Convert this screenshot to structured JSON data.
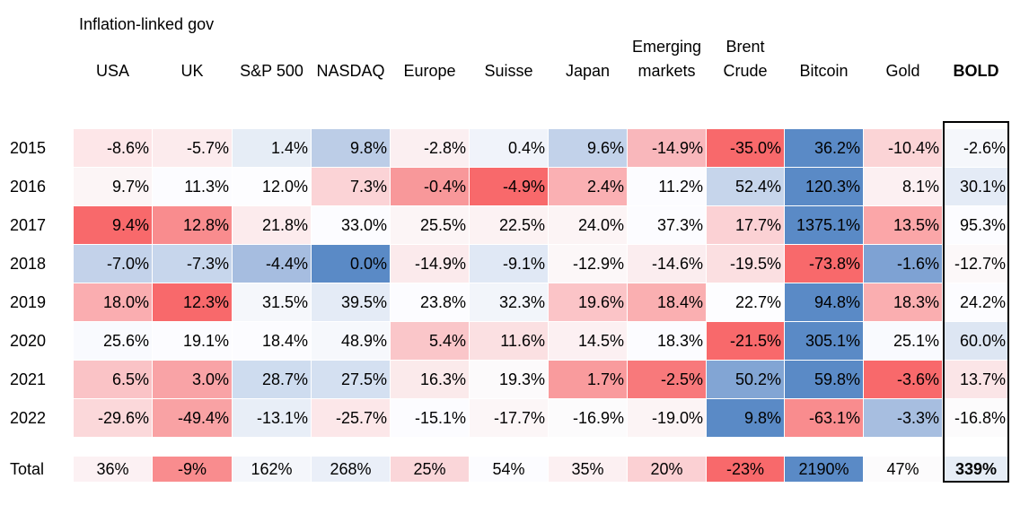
{
  "chart_data": {
    "type": "table",
    "group_header": "Inflation-linked gov",
    "columns": [
      {
        "label": "USA"
      },
      {
        "label": "UK"
      },
      {
        "label": "S&P 500"
      },
      {
        "label": "NASDAQ"
      },
      {
        "label": "Europe"
      },
      {
        "label": "Suisse"
      },
      {
        "label": "Japan"
      },
      {
        "label": "Emerging\nmarkets"
      },
      {
        "label": "Brent\nCrude"
      },
      {
        "label": "Bitcoin"
      },
      {
        "label": "Gold"
      },
      {
        "label": "BOLD",
        "bold": true
      }
    ],
    "rows": [
      {
        "year": "2015",
        "values": [
          "-8.6%",
          "-5.7%",
          "1.4%",
          "9.8%",
          "-2.8%",
          "0.4%",
          "9.6%",
          "-14.9%",
          "-35.0%",
          "36.2%",
          "-10.4%",
          "-2.6%"
        ],
        "colors": [
          "#fde6e8",
          "#fcebed",
          "#e6edf6",
          "#bccde7",
          "#fbeff1",
          "#f0f3fa",
          "#c2d2ea",
          "#f9b7bb",
          "#f8696b",
          "#5a8ac6",
          "#fbd4d6",
          "#f5f7fb"
        ]
      },
      {
        "year": "2016",
        "values": [
          "9.7%",
          "11.3%",
          "12.0%",
          "7.3%",
          "-0.4%",
          "-4.9%",
          "2.4%",
          "11.2%",
          "52.4%",
          "120.3%",
          "8.1%",
          "30.1%"
        ],
        "colors": [
          "#fcf5f6",
          "#fcfcff",
          "#fdfdff",
          "#fbd3d6",
          "#f8989a",
          "#f8696b",
          "#fab0b3",
          "#fcfcff",
          "#c6d5eb",
          "#5a8ac6",
          "#fcf0f2",
          "#e4ebf6"
        ]
      },
      {
        "year": "2017",
        "values": [
          "9.4%",
          "12.8%",
          "21.8%",
          "33.0%",
          "25.5%",
          "22.5%",
          "24.0%",
          "37.3%",
          "17.7%",
          "1375.1%",
          "13.5%",
          "95.3%"
        ],
        "colors": [
          "#f8696b",
          "#f98c8e",
          "#fcebed",
          "#fcfcff",
          "#fcf5f6",
          "#fcf2f3",
          "#fcf4f5",
          "#fcfcff",
          "#fbd1d4",
          "#5a8ac6",
          "#fba6a8",
          "#fcfcff"
        ]
      },
      {
        "year": "2018",
        "values": [
          "-7.0%",
          "-7.3%",
          "-4.4%",
          "0.0%",
          "-14.9%",
          "-9.1%",
          "-12.9%",
          "-14.6%",
          "-19.5%",
          "-73.8%",
          "-1.6%",
          "-12.7%"
        ],
        "colors": [
          "#c3d2ea",
          "#c7d6ec",
          "#a6bde0",
          "#5a8ac6",
          "#fbeaec",
          "#e0e8f5",
          "#fcf7f8",
          "#fbedef",
          "#fbdfe1",
          "#f8696b",
          "#7ea2d3",
          "#fcf8f9"
        ]
      },
      {
        "year": "2019",
        "values": [
          "18.0%",
          "12.3%",
          "31.5%",
          "39.5%",
          "23.8%",
          "32.3%",
          "19.6%",
          "18.4%",
          "22.7%",
          "94.8%",
          "18.3%",
          "24.2%"
        ],
        "colors": [
          "#faadb0",
          "#f8696b",
          "#f5f7fb",
          "#e4ebf6",
          "#fcfcff",
          "#f2f5fa",
          "#fbc4c7",
          "#faafb1",
          "#fdfdff",
          "#5a8ac6",
          "#faaeb0",
          "#fcfcff"
        ]
      },
      {
        "year": "2020",
        "values": [
          "25.6%",
          "19.1%",
          "18.4%",
          "48.9%",
          "5.4%",
          "11.6%",
          "14.5%",
          "18.3%",
          "-21.5%",
          "305.1%",
          "25.1%",
          "60.0%"
        ],
        "colors": [
          "#f9fafe",
          "#fcfcff",
          "#fcfcff",
          "#f6f8fc",
          "#fac6c9",
          "#fbe0e2",
          "#fcf0f2",
          "#fcfcff",
          "#f8696b",
          "#5a8ac6",
          "#f9fafe",
          "#dde6f3"
        ]
      },
      {
        "year": "2021",
        "values": [
          "6.5%",
          "3.0%",
          "28.7%",
          "27.5%",
          "16.3%",
          "19.3%",
          "1.7%",
          "-2.5%",
          "50.2%",
          "59.8%",
          "-3.6%",
          "13.7%"
        ],
        "colors": [
          "#fac3c6",
          "#f9a3a6",
          "#cedcef",
          "#d4e0f1",
          "#fbeaeb",
          "#fcfafb",
          "#f99b9d",
          "#f8797b",
          "#82a5d4",
          "#5a8ac6",
          "#f8696b",
          "#fbe5e7"
        ]
      },
      {
        "year": "2022",
        "values": [
          "-29.6%",
          "-49.4%",
          "-13.1%",
          "-25.7%",
          "-15.1%",
          "-17.7%",
          "-16.9%",
          "-19.0%",
          "9.8%",
          "-63.1%",
          "-3.3%",
          "-16.8%"
        ],
        "colors": [
          "#fbd8da",
          "#f9a2a4",
          "#e8eef7",
          "#fce7e9",
          "#fcfcff",
          "#fcf6f7",
          "#fcfbfc",
          "#fcf4f5",
          "#5a8ac6",
          "#f98c8e",
          "#a7bee0",
          "#fcfbfc"
        ]
      }
    ],
    "total": {
      "label": "Total",
      "values": [
        "36%",
        "-9%",
        "162%",
        "268%",
        "25%",
        "54%",
        "35%",
        "20%",
        "-23%",
        "2190%",
        "47%",
        "339%"
      ],
      "colors": [
        "#fcf1f3",
        "#f98c8e",
        "#f4f6fb",
        "#eaeff8",
        "#fad6d9",
        "#fcfcff",
        "#fcf0f2",
        "#fbd0d3",
        "#f8696b",
        "#5a8ac6",
        "#fcfbfc",
        "#e6edf6"
      ]
    }
  }
}
